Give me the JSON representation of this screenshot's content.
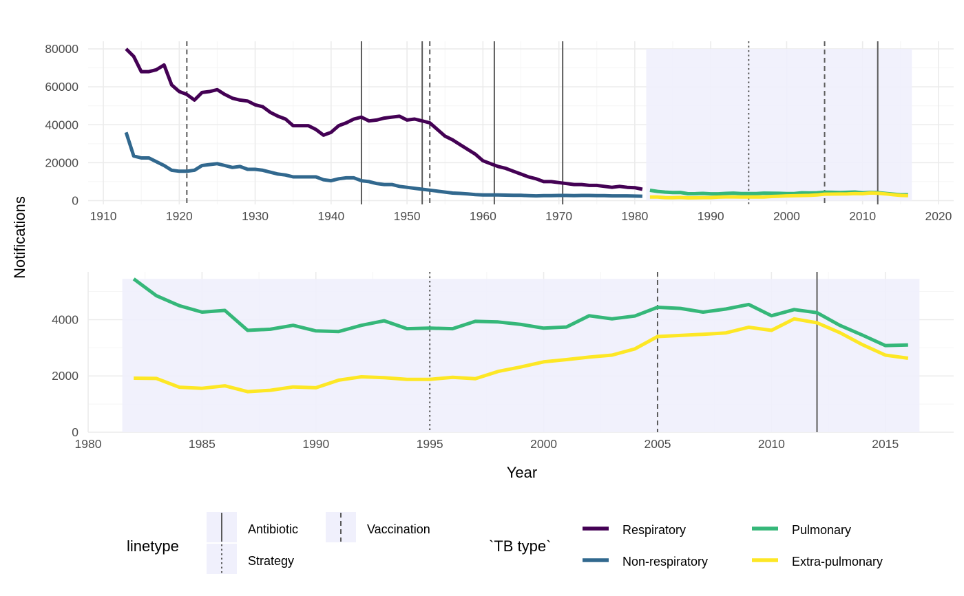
{
  "chart_data": [
    {
      "type": "line",
      "xlabel": "",
      "ylabel": "Notifications",
      "xlim": [
        1908,
        2022
      ],
      "ylim": [
        -2000,
        84000
      ],
      "x_ticks": [
        1910,
        1920,
        1930,
        1940,
        1950,
        1960,
        1970,
        1980,
        1990,
        2000,
        2010,
        2020
      ],
      "y_ticks": [
        0,
        20000,
        40000,
        60000,
        80000
      ],
      "grid": true,
      "highlight_region": [
        1981.5,
        2016.5
      ],
      "vlines": [
        {
          "year": 1921,
          "linetype": "Vaccination"
        },
        {
          "year": 1944,
          "linetype": "Antibiotic"
        },
        {
          "year": 1952,
          "linetype": "Antibiotic"
        },
        {
          "year": 1953,
          "linetype": "Vaccination"
        },
        {
          "year": 1961.5,
          "linetype": "Antibiotic"
        },
        {
          "year": 1970.5,
          "linetype": "Antibiotic"
        },
        {
          "year": 1995,
          "linetype": "Strategy"
        },
        {
          "year": 2005,
          "linetype": "Vaccination"
        },
        {
          "year": 2012,
          "linetype": "Antibiotic"
        }
      ],
      "series": [
        {
          "name": "Respiratory",
          "color": "#440154",
          "x": [
            1913,
            1914,
            1915,
            1916,
            1917,
            1918,
            1919,
            1920,
            1921,
            1922,
            1923,
            1924,
            1925,
            1926,
            1927,
            1928,
            1929,
            1930,
            1931,
            1932,
            1933,
            1934,
            1935,
            1936,
            1937,
            1938,
            1939,
            1940,
            1941,
            1942,
            1943,
            1944,
            1945,
            1946,
            1947,
            1948,
            1949,
            1950,
            1951,
            1952,
            1953,
            1954,
            1955,
            1956,
            1957,
            1958,
            1959,
            1960,
            1961,
            1962,
            1963,
            1964,
            1965,
            1966,
            1967,
            1968,
            1969,
            1970,
            1971,
            1972,
            1973,
            1974,
            1975,
            1976,
            1977,
            1978,
            1979,
            1980,
            1981
          ],
          "y": [
            80000,
            76000,
            68000,
            68000,
            69000,
            71500,
            61000,
            57500,
            56000,
            53000,
            57000,
            57500,
            58500,
            56000,
            54000,
            53000,
            52500,
            50500,
            49500,
            46500,
            44500,
            43000,
            39500,
            39500,
            39500,
            37500,
            34500,
            36000,
            39500,
            41000,
            43000,
            44000,
            42000,
            42500,
            43500,
            44000,
            44500,
            42500,
            43000,
            42000,
            41000,
            37500,
            34000,
            32000,
            29500,
            27000,
            24500,
            21000,
            19500,
            18000,
            17000,
            15500,
            14000,
            12500,
            11500,
            10000,
            10000,
            9500,
            9000,
            8500,
            8500,
            8000,
            8000,
            7500,
            7000,
            7500,
            7000,
            6800,
            6000
          ]
        },
        {
          "name": "Non-respiratory",
          "color": "#31688e",
          "x": [
            1913,
            1914,
            1915,
            1916,
            1917,
            1918,
            1919,
            1920,
            1921,
            1922,
            1923,
            1924,
            1925,
            1926,
            1927,
            1928,
            1929,
            1930,
            1931,
            1932,
            1933,
            1934,
            1935,
            1936,
            1937,
            1938,
            1939,
            1940,
            1941,
            1942,
            1943,
            1944,
            1945,
            1946,
            1947,
            1948,
            1949,
            1950,
            1951,
            1952,
            1953,
            1954,
            1955,
            1956,
            1957,
            1958,
            1959,
            1960,
            1961,
            1962,
            1963,
            1964,
            1965,
            1966,
            1967,
            1968,
            1969,
            1970,
            1971,
            1972,
            1973,
            1974,
            1975,
            1976,
            1977,
            1978,
            1979,
            1980,
            1981
          ],
          "y": [
            36000,
            23500,
            22500,
            22500,
            20500,
            18500,
            16000,
            15500,
            15500,
            16000,
            18500,
            19000,
            19500,
            18500,
            17500,
            18000,
            16500,
            16500,
            16000,
            15000,
            14000,
            13500,
            12500,
            12500,
            12500,
            12500,
            11000,
            10500,
            11500,
            12000,
            12000,
            10500,
            10000,
            9000,
            8500,
            8500,
            7500,
            7000,
            6500,
            6000,
            5500,
            5000,
            4500,
            4000,
            3800,
            3500,
            3200,
            3000,
            3000,
            3000,
            2900,
            2800,
            2800,
            2600,
            2500,
            2600,
            2600,
            2700,
            2700,
            2600,
            2700,
            2700,
            2600,
            2600,
            2500,
            2500,
            2500,
            2400,
            2300
          ]
        },
        {
          "name": "Pulmonary",
          "color": "#35b779",
          "x": [
            1982,
            1983,
            1984,
            1985,
            1986,
            1987,
            1988,
            1989,
            1990,
            1991,
            1992,
            1993,
            1994,
            1995,
            1996,
            1997,
            1998,
            1999,
            2000,
            2001,
            2002,
            2003,
            2004,
            2005,
            2006,
            2007,
            2008,
            2009,
            2010,
            2011,
            2012,
            2013,
            2014,
            2015,
            2016
          ],
          "y": [
            5450,
            4850,
            4500,
            4270,
            4330,
            3620,
            3660,
            3800,
            3600,
            3580,
            3800,
            3960,
            3680,
            3700,
            3680,
            3940,
            3920,
            3830,
            3700,
            3740,
            4140,
            4030,
            4130,
            4440,
            4400,
            4270,
            4380,
            4540,
            4140,
            4360,
            4250,
            3800,
            3450,
            3080,
            3100
          ]
        },
        {
          "name": "Extra-pulmonary",
          "color": "#fde725",
          "x": [
            1982,
            1983,
            1984,
            1985,
            1986,
            1987,
            1988,
            1989,
            1990,
            1991,
            1992,
            1993,
            1994,
            1995,
            1996,
            1997,
            1998,
            1999,
            2000,
            2001,
            2002,
            2003,
            2004,
            2005,
            2006,
            2007,
            2008,
            2009,
            2010,
            2011,
            2012,
            2013,
            2014,
            2015,
            2016
          ],
          "y": [
            1920,
            1910,
            1600,
            1560,
            1650,
            1440,
            1490,
            1610,
            1580,
            1850,
            1970,
            1940,
            1880,
            1880,
            1950,
            1900,
            2160,
            2320,
            2500,
            2580,
            2670,
            2740,
            2960,
            3400,
            3440,
            3480,
            3530,
            3730,
            3620,
            4030,
            3890,
            3540,
            3110,
            2740,
            2630
          ]
        }
      ]
    },
    {
      "type": "line",
      "xlabel": "Year",
      "ylabel": "Notifications",
      "xlim": [
        1980,
        2018
      ],
      "ylim": [
        0,
        5700
      ],
      "x_ticks": [
        1980,
        1985,
        1990,
        1995,
        2000,
        2005,
        2010,
        2015
      ],
      "y_ticks": [
        0,
        2000,
        4000
      ],
      "grid": true,
      "highlight_region": [
        1981.5,
        2016.5
      ],
      "vlines": [
        {
          "year": 1995,
          "linetype": "Strategy"
        },
        {
          "year": 2005,
          "linetype": "Vaccination"
        },
        {
          "year": 2012,
          "linetype": "Antibiotic"
        }
      ],
      "series": [
        {
          "name": "Pulmonary",
          "color": "#35b779",
          "x": [
            1982,
            1983,
            1984,
            1985,
            1986,
            1987,
            1988,
            1989,
            1990,
            1991,
            1992,
            1993,
            1994,
            1995,
            1996,
            1997,
            1998,
            1999,
            2000,
            2001,
            2002,
            2003,
            2004,
            2005,
            2006,
            2007,
            2008,
            2009,
            2010,
            2011,
            2012,
            2013,
            2014,
            2015,
            2016
          ],
          "y": [
            5450,
            4850,
            4500,
            4270,
            4330,
            3620,
            3660,
            3800,
            3600,
            3580,
            3800,
            3960,
            3680,
            3700,
            3680,
            3940,
            3920,
            3830,
            3700,
            3740,
            4140,
            4030,
            4130,
            4440,
            4400,
            4270,
            4380,
            4540,
            4140,
            4360,
            4250,
            3800,
            3450,
            3080,
            3100
          ]
        },
        {
          "name": "Extra-pulmonary",
          "color": "#fde725",
          "x": [
            1982,
            1983,
            1984,
            1985,
            1986,
            1987,
            1988,
            1989,
            1990,
            1991,
            1992,
            1993,
            1994,
            1995,
            1996,
            1997,
            1998,
            1999,
            2000,
            2001,
            2002,
            2003,
            2004,
            2005,
            2006,
            2007,
            2008,
            2009,
            2010,
            2011,
            2012,
            2013,
            2014,
            2015,
            2016
          ],
          "y": [
            1920,
            1910,
            1600,
            1560,
            1650,
            1440,
            1490,
            1610,
            1580,
            1850,
            1970,
            1940,
            1880,
            1880,
            1950,
            1900,
            2160,
            2320,
            2500,
            2580,
            2670,
            2740,
            2960,
            3400,
            3440,
            3480,
            3530,
            3730,
            3620,
            4030,
            3890,
            3540,
            3110,
            2740,
            2630
          ]
        }
      ]
    }
  ],
  "shared_ylabel": "Notifications",
  "legend": {
    "placement": "bottom",
    "linetype": {
      "title": "linetype",
      "items": [
        {
          "label": "Antibiotic",
          "dash": "solid"
        },
        {
          "label": "Strategy",
          "dash": "dotted"
        },
        {
          "label": "Vaccination",
          "dash": "dashed"
        }
      ]
    },
    "tb_type": {
      "title": "`TB type`",
      "items": [
        {
          "label": "Respiratory",
          "color": "#440154"
        },
        {
          "label": "Non-respiratory",
          "color": "#31688e"
        },
        {
          "label": "Pulmonary",
          "color": "#35b779"
        },
        {
          "label": "Extra-pulmonary",
          "color": "#fde725"
        }
      ]
    }
  },
  "colors": {
    "highlight": "#f0f0fc",
    "grid_major": "#ebebeb",
    "grid_minor": "#f5f5f5",
    "vline": "#5a5a5a"
  }
}
